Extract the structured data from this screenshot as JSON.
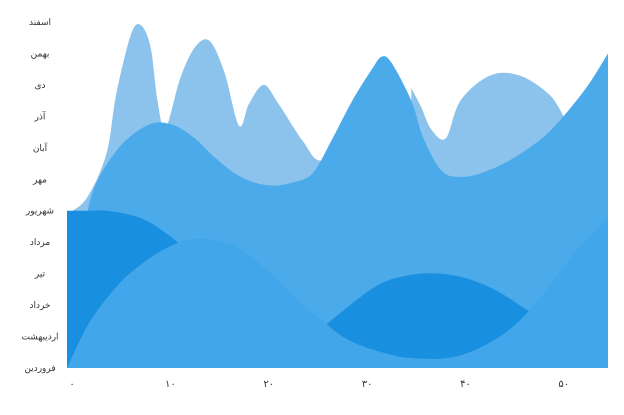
{
  "chart_data": {
    "type": "area",
    "title": "",
    "xlabel": "",
    "ylabel": "",
    "x_ticks": [
      "۰",
      "۱۰",
      "۲۰",
      "۳۰",
      "۴۰",
      "۵۰"
    ],
    "y_categories": [
      "فروردین",
      "اردیبهشت",
      "خرداد",
      "تیر",
      "مرداد",
      "شهریور",
      "مهر",
      "آبان",
      "آذر",
      "دی",
      "بهمن",
      "اسفند"
    ],
    "xlim": [
      0,
      55
    ],
    "ylim": [
      1,
      12
    ],
    "series": [
      {
        "color": "#8cc3ec",
        "points": [
          [
            0,
            5.9
          ],
          [
            2,
            6.4
          ],
          [
            4,
            7.8
          ],
          [
            5,
            9.7
          ],
          [
            6.5,
            11.6
          ],
          [
            7.5,
            11.9
          ],
          [
            8.5,
            11.2
          ],
          [
            9.2,
            9.5
          ],
          [
            10,
            8.6
          ],
          [
            11.5,
            10.2
          ],
          [
            13,
            11.2
          ],
          [
            14.5,
            11.4
          ],
          [
            16,
            10.4
          ],
          [
            17.5,
            8.7
          ],
          [
            18.5,
            9.4
          ],
          [
            20,
            10
          ],
          [
            21.5,
            9.4
          ],
          [
            24,
            8.2
          ],
          [
            26,
            7.6
          ],
          [
            30,
            8.5
          ]
        ]
      },
      {
        "color": "#8cc3ec",
        "points": [
          [
            35,
            9.9
          ],
          [
            36,
            9.3
          ],
          [
            37,
            8.6
          ],
          [
            38.5,
            8.3
          ],
          [
            40,
            9.5
          ],
          [
            43,
            10.3
          ],
          [
            46,
            10.3
          ],
          [
            49,
            9.7
          ],
          [
            50.5,
            9
          ]
        ]
      },
      {
        "color": "#4aaaea",
        "points": [
          [
            0,
            1
          ],
          [
            1,
            4.5
          ],
          [
            2,
            5.9
          ],
          [
            3,
            6.9
          ],
          [
            5,
            7.9
          ],
          [
            7,
            8.5
          ],
          [
            9,
            8.8
          ],
          [
            11,
            8.7
          ],
          [
            13,
            8.3
          ],
          [
            15,
            7.7
          ],
          [
            17,
            7.2
          ],
          [
            19,
            6.9
          ],
          [
            21,
            6.8
          ],
          [
            23,
            6.9
          ],
          [
            25,
            7.2
          ],
          [
            27,
            8.3
          ],
          [
            29,
            9.5
          ],
          [
            31,
            10.5
          ],
          [
            32,
            10.9
          ],
          [
            33,
            10.7
          ],
          [
            35,
            9.5
          ],
          [
            36,
            8.5
          ],
          [
            37,
            7.8
          ],
          [
            38,
            7.3
          ],
          [
            39,
            7.1
          ],
          [
            41,
            7.1
          ],
          [
            43,
            7.3
          ],
          [
            45,
            7.6
          ],
          [
            47,
            8
          ],
          [
            49,
            8.5
          ],
          [
            51,
            9.2
          ],
          [
            53,
            10
          ],
          [
            55,
            11
          ]
        ]
      },
      {
        "color": "#198fe0",
        "points": [
          [
            0,
            6
          ],
          [
            2,
            6
          ],
          [
            4,
            6
          ],
          [
            6,
            5.9
          ],
          [
            8,
            5.7
          ],
          [
            10,
            5.3
          ],
          [
            12,
            4.8
          ],
          [
            14,
            4.2
          ],
          [
            16,
            3.5
          ],
          [
            18,
            2.9
          ],
          [
            20,
            2.5
          ],
          [
            22,
            2.2
          ],
          [
            24,
            2
          ]
        ]
      },
      {
        "color": "#198fe0",
        "points": [
          [
            26,
            2.3
          ],
          [
            28,
            2.8
          ],
          [
            30,
            3.3
          ],
          [
            32,
            3.7
          ],
          [
            34,
            3.9
          ],
          [
            36,
            4
          ],
          [
            38,
            4
          ],
          [
            40,
            3.9
          ],
          [
            42,
            3.7
          ],
          [
            44,
            3.4
          ],
          [
            46,
            3
          ],
          [
            48,
            2.6
          ],
          [
            50,
            2.2
          ],
          [
            52,
            2
          ]
        ]
      },
      {
        "color": "#41a6ea",
        "points": [
          [
            0,
            1
          ],
          [
            2,
            2.3
          ],
          [
            4,
            3.2
          ],
          [
            6,
            3.9
          ],
          [
            8,
            4.4
          ],
          [
            10,
            4.8
          ],
          [
            12,
            5.05
          ],
          [
            14,
            5.1
          ],
          [
            16,
            5
          ],
          [
            18,
            4.7
          ],
          [
            20,
            4.2
          ],
          [
            22,
            3.6
          ],
          [
            24,
            3
          ],
          [
            26,
            2.5
          ],
          [
            28,
            2
          ],
          [
            30,
            1.7
          ],
          [
            32,
            1.5
          ],
          [
            34,
            1.35
          ],
          [
            36,
            1.3
          ],
          [
            38,
            1.3
          ],
          [
            40,
            1.4
          ],
          [
            42,
            1.65
          ],
          [
            44,
            2
          ],
          [
            46,
            2.5
          ],
          [
            48,
            3.2
          ],
          [
            50,
            4
          ],
          [
            52,
            4.8
          ],
          [
            55,
            5.8
          ]
        ]
      }
    ]
  }
}
